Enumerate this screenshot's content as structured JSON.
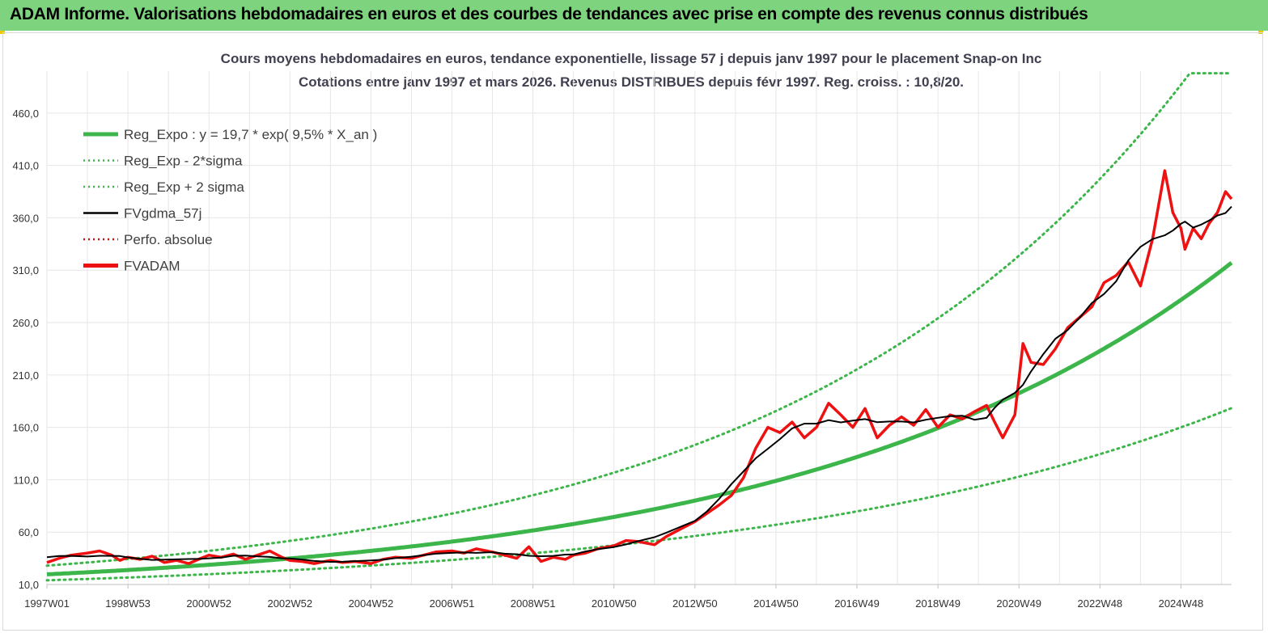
{
  "banner": {
    "title": "ADAM Informe. Valorisations hebdomadaires en euros et des courbes de tendances avec prise en compte des revenus connus distribués"
  },
  "colors": {
    "banner": "#7ed37e",
    "regression": "#3cb64a",
    "sigma": "#3cb64a",
    "smooth": "#000000",
    "perfo": "#d01010",
    "adam": "#ee1111"
  },
  "chart_data": {
    "type": "line",
    "title": "Cours moyens hebdomadaires en euros, tendance exponentielle, lissage 57 j depuis janv 1997 pour le placement Snap-on Inc",
    "subtitle": "Cotations entre janv 1997 et mars 2026. Revenus DISTRIBUES depuis févr 1997. Reg. croiss. : 10,8/20.",
    "x_tick_labels": [
      "1997W01",
      "1998W53",
      "2000W52",
      "2002W52",
      "2004W52",
      "2006W51",
      "2008W51",
      "2010W50",
      "2012W50",
      "2014W50",
      "2016W49",
      "2018W49",
      "2020W49",
      "2022W48",
      "2024W48"
    ],
    "x_tick_positions": [
      1997.0,
      1999.0,
      2001.0,
      2003.0,
      2005.0,
      2007.0,
      2009.0,
      2011.0,
      2013.0,
      2015.0,
      2017.0,
      2019.0,
      2021.0,
      2023.0,
      2025.0
    ],
    "x_range": [
      1997.0,
      2026.25
    ],
    "y_ticks": [
      "10,0",
      "60,0",
      "110,0",
      "160,0",
      "210,0",
      "260,0",
      "310,0",
      "360,0",
      "410,0",
      "460,0"
    ],
    "y_tick_values": [
      10,
      60,
      110,
      160,
      210,
      260,
      310,
      360,
      410,
      460
    ],
    "ylim": [
      10,
      500
    ],
    "grid": true,
    "legend_position": "top-left",
    "legend": [
      {
        "key": "reg",
        "label": "Reg_Expo : y = 19,7 * exp( 9,5% *  X_an )",
        "style": "solid-thick",
        "color": "#3cb64a"
      },
      {
        "key": "low",
        "label": "Reg_Exp - 2*sigma",
        "style": "dotted",
        "color": "#3cb64a"
      },
      {
        "key": "high",
        "label": "Reg_Exp + 2 sigma",
        "style": "dotted",
        "color": "#3cb64a"
      },
      {
        "key": "smooth",
        "label": "FVgdma_57j",
        "style": "solid",
        "color": "#000000"
      },
      {
        "key": "perfo",
        "label": "Perfo. absolue",
        "style": "dotted",
        "color": "#d01010"
      },
      {
        "key": "adam",
        "label": "FVADAM",
        "style": "solid-thick",
        "color": "#ee1111"
      }
    ],
    "series": [
      {
        "name": "Reg_Expo : y = 19,7 * exp( 9,5% *  X_an )",
        "type": "exponential",
        "a": 19.7,
        "rate": 0.095,
        "x0": 1997.0
      },
      {
        "name": "Reg_Exp - 2*sigma",
        "type": "exponential",
        "a": 14.0,
        "rate": 0.087,
        "x0": 1997.0
      },
      {
        "name": "Reg_Exp + 2 sigma",
        "type": "exponential",
        "a": 28.0,
        "rate": 0.102,
        "x0": 1997.0,
        "cap": 498
      },
      {
        "name": "FVADAM",
        "x": [
          1997.0,
          1997.3,
          1997.6,
          1998.0,
          1998.3,
          1998.6,
          1998.8,
          1999.0,
          1999.3,
          1999.6,
          1999.9,
          2000.2,
          2000.5,
          2000.8,
          2001.0,
          2001.3,
          2001.6,
          2001.9,
          2002.2,
          2002.5,
          2002.8,
          2003.0,
          2003.3,
          2003.6,
          2004.0,
          2004.3,
          2004.6,
          2005.0,
          2005.3,
          2005.6,
          2006.0,
          2006.3,
          2006.6,
          2007.0,
          2007.3,
          2007.6,
          2008.0,
          2008.3,
          2008.6,
          2008.9,
          2009.2,
          2009.5,
          2009.8,
          2010.0,
          2010.3,
          2010.6,
          2011.0,
          2011.3,
          2011.6,
          2012.0,
          2012.3,
          2012.6,
          2013.0,
          2013.3,
          2013.6,
          2013.9,
          2014.2,
          2014.5,
          2014.8,
          2015.1,
          2015.4,
          2015.7,
          2016.0,
          2016.3,
          2016.6,
          2016.9,
          2017.2,
          2017.5,
          2017.8,
          2018.1,
          2018.4,
          2018.7,
          2019.0,
          2019.3,
          2019.6,
          2019.9,
          2020.2,
          2020.4,
          2020.6,
          2020.9,
          2021.1,
          2021.3,
          2021.6,
          2021.9,
          2022.2,
          2022.5,
          2022.8,
          2023.1,
          2023.4,
          2023.7,
          2024.0,
          2024.3,
          2024.6,
          2024.8,
          2025.0,
          2025.1,
          2025.3,
          2025.5,
          2025.7,
          2025.9,
          2026.1,
          2026.25
        ],
        "values": [
          31,
          35,
          38,
          40,
          42,
          38,
          33,
          36,
          34,
          37,
          31,
          33,
          30,
          35,
          38,
          36,
          39,
          34,
          38,
          42,
          36,
          33,
          32,
          30,
          33,
          31,
          32,
          30,
          34,
          36,
          35,
          38,
          41,
          42,
          40,
          44,
          41,
          38,
          35,
          46,
          32,
          36,
          34,
          38,
          40,
          44,
          47,
          52,
          51,
          48,
          56,
          62,
          70,
          78,
          86,
          95,
          112,
          140,
          160,
          155,
          165,
          150,
          160,
          183,
          172,
          160,
          178,
          150,
          162,
          170,
          162,
          177,
          160,
          172,
          168,
          175,
          181,
          165,
          150,
          172,
          240,
          222,
          220,
          235,
          255,
          265,
          275,
          298,
          305,
          318,
          295,
          340,
          405,
          365,
          350,
          330,
          350,
          340,
          355,
          365,
          385,
          378
        ]
      },
      {
        "name": "FVgdma_57j",
        "smooth_of": "FVADAM",
        "window": 3
      }
    ]
  }
}
